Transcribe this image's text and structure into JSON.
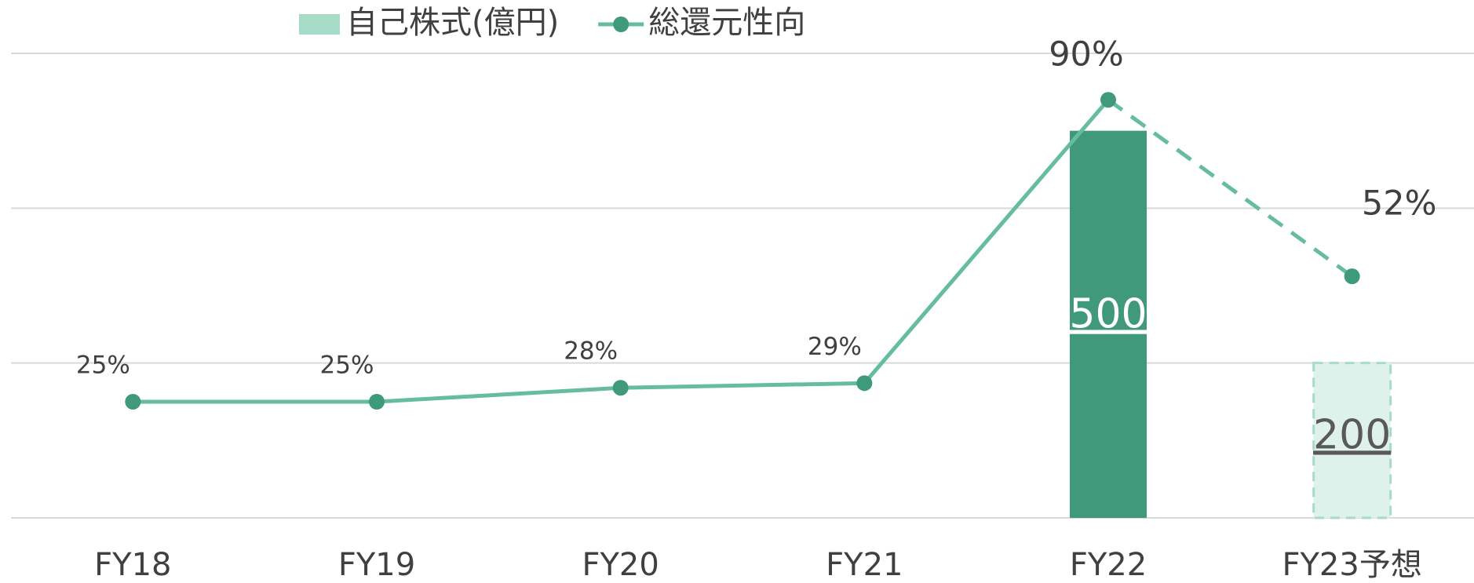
{
  "chart_data": {
    "type": "bar_line",
    "categories": [
      "FY18",
      "FY19",
      "FY20",
      "FY21",
      "FY22",
      "FY23予想"
    ],
    "series": [
      {
        "name": "自己株式(億円)",
        "type": "bar",
        "color": "#a6dbc7",
        "point_colors": [
          null,
          null,
          null,
          null,
          "#41997c",
          "#dff1eb"
        ],
        "values": [
          null,
          null,
          null,
          null,
          500,
          200
        ]
      },
      {
        "name": "総還元性向",
        "type": "line",
        "axis": "y2",
        "color": "#66bd9d",
        "marker_color": "#3f9a7d",
        "values": [
          25,
          25,
          28,
          29,
          90,
          52
        ],
        "value_labels": [
          "25%",
          "25%",
          "28%",
          "29%",
          "90%",
          "52%"
        ]
      }
    ],
    "ylim": [
      0,
      600
    ],
    "yticks": [
      0,
      200,
      400,
      600
    ],
    "y2lim": [
      0,
      100
    ],
    "grid": true,
    "legend": "top"
  }
}
